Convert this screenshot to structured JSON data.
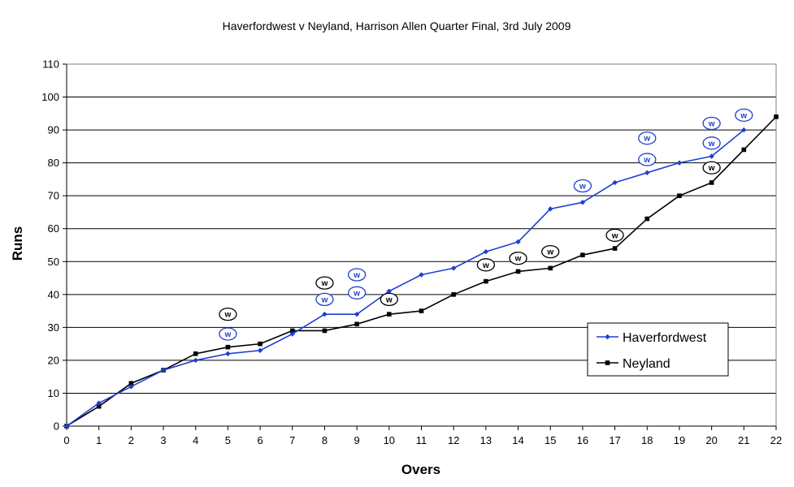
{
  "chart_data": {
    "type": "line",
    "title": "Haverfordwest v Neyland, Harrison Allen Quarter Final, 3rd July 2009",
    "xlabel": "Overs",
    "ylabel": "Runs",
    "xlim": [
      0,
      22
    ],
    "ylim": [
      0,
      110
    ],
    "xticks": [
      0,
      1,
      2,
      3,
      4,
      5,
      6,
      7,
      8,
      9,
      10,
      11,
      12,
      13,
      14,
      15,
      16,
      17,
      18,
      19,
      20,
      21,
      22
    ],
    "yticks": [
      0,
      10,
      20,
      30,
      40,
      50,
      60,
      70,
      80,
      90,
      100,
      110
    ],
    "grid": "horizontal",
    "legend_position": "bottom-right",
    "series": [
      {
        "name": "Haverfordwest",
        "color": "#1f3fd0",
        "marker": "diamond",
        "x": [
          0,
          1,
          2,
          3,
          4,
          5,
          6,
          7,
          8,
          9,
          10,
          11,
          12,
          13,
          14,
          15,
          16,
          17,
          18,
          19,
          20,
          21
        ],
        "y": [
          0,
          7,
          12,
          17,
          20,
          22,
          23,
          28,
          34,
          34,
          41,
          46,
          48,
          53,
          56,
          66,
          68,
          74,
          77,
          80,
          82,
          90
        ]
      },
      {
        "name": "Neyland",
        "color": "#000000",
        "marker": "square",
        "x": [
          0,
          1,
          2,
          3,
          4,
          5,
          6,
          7,
          8,
          9,
          10,
          11,
          12,
          13,
          14,
          15,
          16,
          17,
          18,
          19,
          20,
          21,
          22
        ],
        "y": [
          0,
          6,
          13,
          17,
          22,
          24,
          25,
          29,
          29,
          31,
          34,
          35,
          40,
          44,
          47,
          48,
          52,
          54,
          63,
          70,
          74,
          84,
          94
        ]
      }
    ],
    "wicket_label": "w",
    "wickets": {
      "Haverfordwest": [
        {
          "over": 5,
          "level": 28
        },
        {
          "over": 8,
          "level": 38.5
        },
        {
          "over": 9,
          "level": 40.5
        },
        {
          "over": 9,
          "level": 46
        },
        {
          "over": 16,
          "level": 73
        },
        {
          "over": 18,
          "level": 81
        },
        {
          "over": 18,
          "level": 87.5
        },
        {
          "over": 20,
          "level": 86
        },
        {
          "over": 20,
          "level": 92
        },
        {
          "over": 21,
          "level": 94.5
        }
      ],
      "Neyland": [
        {
          "over": 5,
          "level": 34
        },
        {
          "over": 8,
          "level": 43.5
        },
        {
          "over": 10,
          "level": 38.5
        },
        {
          "over": 13,
          "level": 49
        },
        {
          "over": 14,
          "level": 51
        },
        {
          "over": 15,
          "level": 53
        },
        {
          "over": 17,
          "level": 58
        },
        {
          "over": 20,
          "level": 78.5
        }
      ]
    }
  }
}
